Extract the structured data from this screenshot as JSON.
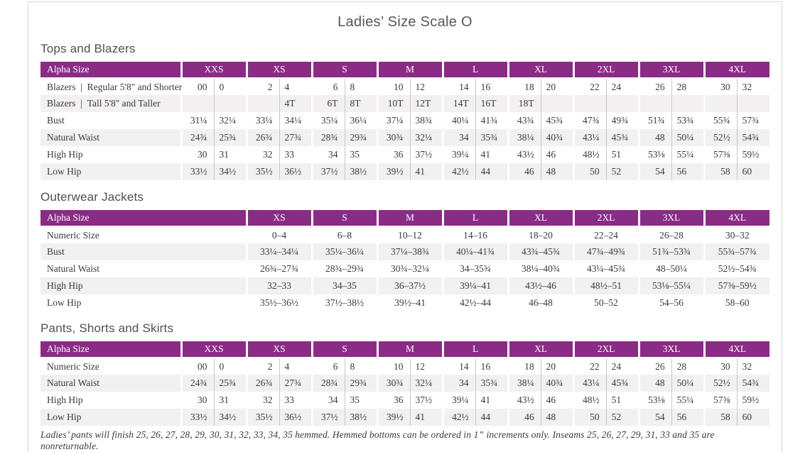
{
  "page": {
    "title": "Ladies’ Size Scale O"
  },
  "colors": {
    "header": "#8a2b86",
    "stripe": "#f2f0f0"
  },
  "tables": [
    {
      "id": "tops-and-blazers",
      "heading": "Tops and Blazers",
      "label_header": "Alpha Size",
      "columns_per_size": 2,
      "sizes": [
        "XXS",
        "XS",
        "S",
        "M",
        "L",
        "XL",
        "2XL",
        "3XL",
        "4XL"
      ],
      "rows": [
        {
          "label": "Blazers | Regular 5'8\" and Shorter",
          "values": [
            "00",
            "0",
            "2",
            "4",
            "6",
            "8",
            "10",
            "12",
            "14",
            "16",
            "18",
            "20",
            "22",
            "24",
            "26",
            "28",
            "30",
            "32"
          ]
        },
        {
          "label": "Blazers | Tall 5'8\" and Taller",
          "values": [
            "",
            "",
            "",
            "4T",
            "6T",
            "8T",
            "10T",
            "12T",
            "14T",
            "16T",
            "18T",
            "",
            "",
            "",
            "",
            "",
            "",
            ""
          ]
        },
        {
          "label": "Bust",
          "values": [
            "31¼",
            "32¼",
            "33¼",
            "34¼",
            "35¼",
            "36¼",
            "37¼",
            "38¾",
            "40¼",
            "41¾",
            "43¾",
            "45¾",
            "47¾",
            "49¾",
            "51¾",
            "53¾",
            "55¾",
            "57¾"
          ]
        },
        {
          "label": "Natural Waist",
          "values": [
            "24¾",
            "25¾",
            "26¾",
            "27¾",
            "28¾",
            "29¾",
            "30¾",
            "32¼",
            "34",
            "35¾",
            "38¼",
            "40¾",
            "43¼",
            "45¾",
            "48",
            "50¼",
            "52½",
            "54¾"
          ]
        },
        {
          "label": "High Hip",
          "values": [
            "30",
            "31",
            "32",
            "33",
            "34",
            "35",
            "36",
            "37½",
            "39¼",
            "41",
            "43½",
            "46",
            "48½",
            "51",
            "53⅛",
            "55¼",
            "57⅜",
            "59½"
          ]
        },
        {
          "label": "Low Hip",
          "values": [
            "33½",
            "34½",
            "35½",
            "36½",
            "37½",
            "38½",
            "39½",
            "41",
            "42½",
            "44",
            "46",
            "48",
            "50",
            "52",
            "54",
            "56",
            "58",
            "60"
          ]
        }
      ]
    },
    {
      "id": "outerwear-jackets",
      "heading": "Outerwear Jackets",
      "label_header": "Alpha Size",
      "columns_per_size": 1,
      "sizes": [
        "XS",
        "S",
        "M",
        "L",
        "XL",
        "2XL",
        "3XL",
        "4XL"
      ],
      "rows": [
        {
          "label": "Numeric Size",
          "values": [
            "0–4",
            "6–8",
            "10–12",
            "14–16",
            "18–20",
            "22–24",
            "26–28",
            "30–32"
          ]
        },
        {
          "label": "Bust",
          "values": [
            "33¼–34¼",
            "35¼–36¼",
            "37¼–38¾",
            "40¼–41¾",
            "43¾–45¾",
            "47¾–49¾",
            "51¾–53¾",
            "55¾–57¾"
          ]
        },
        {
          "label": "Natural Waist",
          "values": [
            "26¾–27¾",
            "28¾–29¾",
            "30¾–32¼",
            "34–35¾",
            "38¼–40¾",
            "43¼–45¾",
            "48–50¼",
            "52½–54¾"
          ]
        },
        {
          "label": "High Hip",
          "values": [
            "32–33",
            "34–35",
            "36–37½",
            "39¼–41",
            "43½–46",
            "48½–51",
            "53⅛–55¼",
            "57⅜–59½"
          ]
        },
        {
          "label": "Low Hip",
          "values": [
            "35½–36½",
            "37½–38½",
            "39½–41",
            "42½–44",
            "46–48",
            "50–52",
            "54–56",
            "58–60"
          ]
        }
      ]
    },
    {
      "id": "pants-shorts-skirts",
      "heading": "Pants, Shorts and Skirts",
      "label_header": "Alpha Size",
      "columns_per_size": 2,
      "sizes": [
        "XXS",
        "XS",
        "S",
        "M",
        "L",
        "XL",
        "2XL",
        "3XL",
        "4XL"
      ],
      "rows": [
        {
          "label": "Numeric Size",
          "values": [
            "00",
            "0",
            "2",
            "4",
            "6",
            "8",
            "10",
            "12",
            "14",
            "16",
            "18",
            "20",
            "22",
            "24",
            "26",
            "28",
            "30",
            "32"
          ]
        },
        {
          "label": "Natural Waist",
          "values": [
            "24¾",
            "25¾",
            "26¾",
            "27¾",
            "28¾",
            "29¾",
            "30¾",
            "32¼",
            "34",
            "35¾",
            "38¼",
            "40¾",
            "43¼",
            "45¾",
            "48",
            "50¼",
            "52½",
            "54¾"
          ]
        },
        {
          "label": "High Hip",
          "values": [
            "30",
            "31",
            "32",
            "33",
            "34",
            "35",
            "36",
            "37½",
            "39¼",
            "41",
            "43½",
            "46",
            "48½",
            "51",
            "53⅛",
            "55¼",
            "57⅜",
            "59½"
          ]
        },
        {
          "label": "Low Hip",
          "values": [
            "33½",
            "34½",
            "35½",
            "36½",
            "37½",
            "38½",
            "39½",
            "41",
            "42½",
            "44",
            "46",
            "48",
            "50",
            "52",
            "54",
            "56",
            "58",
            "60"
          ]
        }
      ]
    }
  ],
  "footnote": "Ladies’ pants will finish 25, 26, 27, 28, 29, 30, 31, 32, 33, 34, 35 hemmed. Hemmed bottoms can be ordered in 1” increments only. Inseams 25, 26, 27, 29, 31, 33 and 35 are nonreturnable."
}
